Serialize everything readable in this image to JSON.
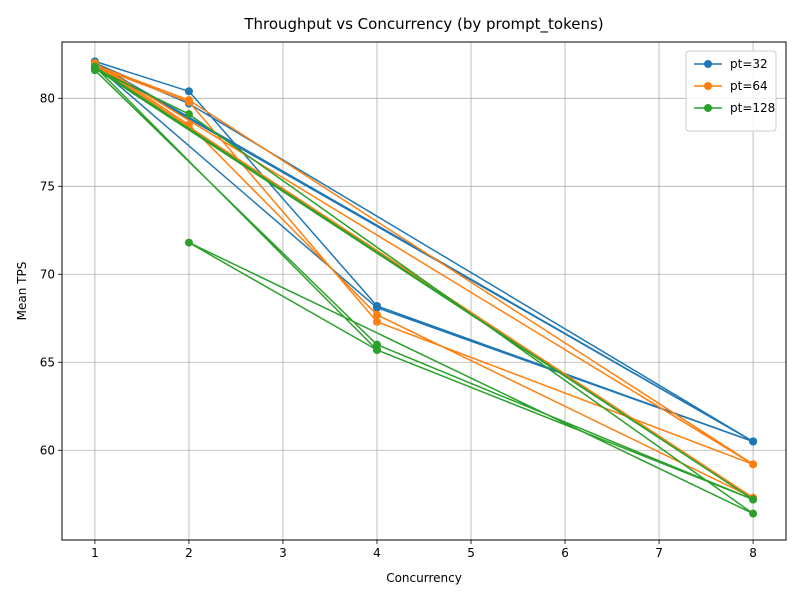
{
  "chart_data": {
    "type": "line",
    "title": "Throughput vs Concurrency (by prompt_tokens)",
    "xlabel": "Concurrency",
    "ylabel": "Mean TPS",
    "xlim": [
      0.65,
      8.35
    ],
    "ylim": [
      54.9,
      83.2
    ],
    "xticks": [
      1,
      2,
      3,
      4,
      5,
      6,
      7,
      8
    ],
    "yticks": [
      60,
      65,
      70,
      75,
      80
    ],
    "grid": true,
    "legend_position": "top-right",
    "series": [
      {
        "name": "pt=32",
        "color": "#1f77b4",
        "x": [
          1,
          2,
          4,
          8,
          1,
          4,
          8,
          1,
          2,
          8
        ],
        "y": [
          82.1,
          80.4,
          68.2,
          60.5,
          81.9,
          68.1,
          60.5,
          82.0,
          79.7,
          60.5
        ]
      },
      {
        "name": "pt=64",
        "color": "#ff7f0e",
        "x": [
          1,
          2,
          4,
          8,
          1,
          2,
          4,
          8,
          1,
          2,
          8
        ],
        "y": [
          81.8,
          79.8,
          67.3,
          59.2,
          82.0,
          78.5,
          67.7,
          57.3,
          81.9,
          79.9,
          59.2
        ]
      },
      {
        "name": "pt=128",
        "color": "#2ca02c",
        "x": [
          1,
          4,
          8,
          1,
          2,
          8,
          2,
          4,
          8,
          1,
          4
        ],
        "y": [
          81.6,
          66.0,
          57.2,
          81.7,
          79.1,
          56.4,
          71.8,
          65.7,
          57.2,
          81.8,
          65.7
        ]
      }
    ]
  }
}
